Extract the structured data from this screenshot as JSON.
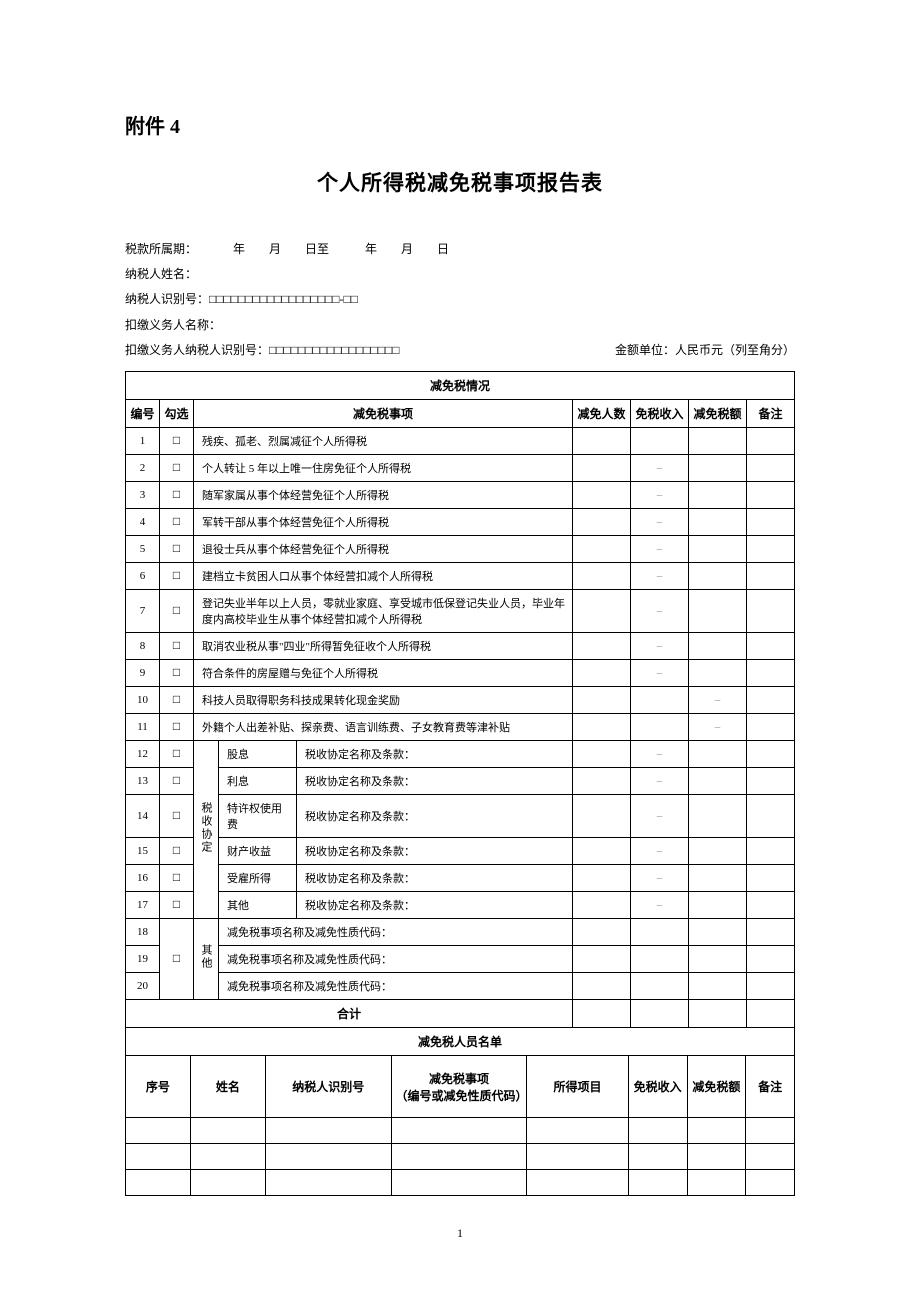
{
  "attachment_label": "附件 4",
  "title": "个人所得税减免税事项报告表",
  "header": {
    "period_label": "税款所属期：",
    "period_value": "　　　年　　月　　日至　　　年　　月　　日",
    "taxpayer_name_label": "纳税人姓名：",
    "taxpayer_id_label": "纳税人识别号：",
    "taxpayer_id_boxes": "□□□□□□□□□□□□□□□□□□-□□",
    "agent_name_label": "扣缴义务人名称：",
    "agent_id_label": "扣缴义务人纳税人识别号：",
    "agent_id_boxes": "□□□□□□□□□□□□□□□□□□",
    "unit_label": "金额单位：人民币元（列至角分）"
  },
  "section1_title": "减免税情况",
  "cols": {
    "no": "编号",
    "check": "勾选",
    "item": "减免税事项",
    "count": "减免人数",
    "income": "免税收入",
    "amount": "减免税额",
    "note": "备注"
  },
  "checkbox": "□",
  "dash": "–",
  "items": [
    {
      "no": "1",
      "desc": "残疾、孤老、烈属减征个人所得税",
      "income_dash": false,
      "amount_dash": false
    },
    {
      "no": "2",
      "desc": "个人转让 5 年以上唯一住房免征个人所得税",
      "income_dash": true,
      "amount_dash": false
    },
    {
      "no": "3",
      "desc": "随军家属从事个体经营免征个人所得税",
      "income_dash": true,
      "amount_dash": false
    },
    {
      "no": "4",
      "desc": "军转干部从事个体经营免征个人所得税",
      "income_dash": true,
      "amount_dash": false
    },
    {
      "no": "5",
      "desc": "退役士兵从事个体经营免征个人所得税",
      "income_dash": true,
      "amount_dash": false
    },
    {
      "no": "6",
      "desc": "建档立卡贫困人口从事个体经营扣减个人所得税",
      "income_dash": true,
      "amount_dash": false
    },
    {
      "no": "7",
      "desc": "登记失业半年以上人员，零就业家庭、享受城市低保登记失业人员，毕业年度内高校毕业生从事个体经营扣减个人所得税",
      "income_dash": true,
      "amount_dash": false
    },
    {
      "no": "8",
      "desc": "取消农业税从事\"四业\"所得暂免征收个人所得税",
      "income_dash": true,
      "amount_dash": false
    },
    {
      "no": "9",
      "desc": "符合条件的房屋赠与免征个人所得税",
      "income_dash": true,
      "amount_dash": false
    },
    {
      "no": "10",
      "desc": "科技人员取得职务科技成果转化现金奖励",
      "income_dash": false,
      "amount_dash": true
    },
    {
      "no": "11",
      "desc": "外籍个人出差补贴、探亲费、语言训练费、子女教育费等津补贴",
      "income_dash": false,
      "amount_dash": true
    }
  ],
  "treaty_group_label": "税收协定",
  "treaty_items": [
    {
      "no": "12",
      "name": "股息",
      "clause": "税收协定名称及条款："
    },
    {
      "no": "13",
      "name": "利息",
      "clause": "税收协定名称及条款："
    },
    {
      "no": "14",
      "name": "特许权使用费",
      "clause": "税收协定名称及条款："
    },
    {
      "no": "15",
      "name": "财产收益",
      "clause": "税收协定名称及条款："
    },
    {
      "no": "16",
      "name": "受雇所得",
      "clause": "税收协定名称及条款："
    },
    {
      "no": "17",
      "name": "其他",
      "clause": "税收协定名称及条款："
    }
  ],
  "other_group_label": "其他",
  "other_items": [
    {
      "no": "18",
      "desc": "减免税事项名称及减免性质代码："
    },
    {
      "no": "19",
      "desc": "减免税事项名称及减免性质代码："
    },
    {
      "no": "20",
      "desc": "减免税事项名称及减免性质代码："
    }
  ],
  "total_label": "合计",
  "section2_title": "减免税人员名单",
  "names_cols": {
    "seq": "序号",
    "name": "姓名",
    "id": "纳税人识别号",
    "item": "减免税事项\n（编号或减免性质代码）",
    "income_type": "所得项目",
    "income": "免税收入",
    "amount": "减免税额",
    "note": "备注"
  },
  "blank_rows": 3,
  "page_number": "1"
}
